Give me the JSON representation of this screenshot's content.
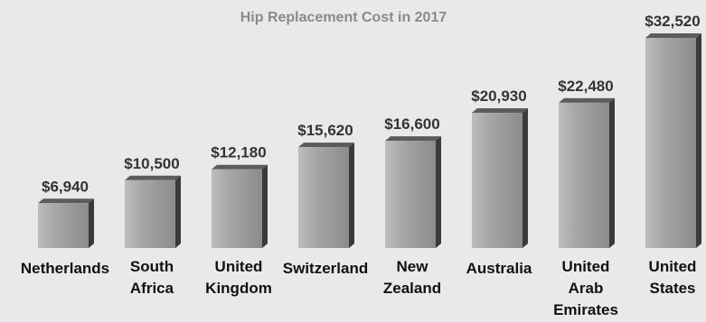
{
  "chart_data": {
    "type": "bar",
    "title": "Hip Replacement Cost in 2017",
    "categories": [
      "Netherlands",
      "South Africa",
      "United Kingdom",
      "Switzerland",
      "New Zealand",
      "Australia",
      "United Arab Emirates",
      "United States"
    ],
    "category_lines": [
      [
        "Netherlands"
      ],
      [
        "South",
        "Africa"
      ],
      [
        "United",
        "Kingdom"
      ],
      [
        "Switzerland"
      ],
      [
        "New",
        "Zealand"
      ],
      [
        "Australia"
      ],
      [
        "United",
        "Arab",
        "Emirates"
      ],
      [
        "United",
        "States"
      ]
    ],
    "values": [
      6940,
      10500,
      12180,
      15620,
      16600,
      20930,
      22480,
      32520
    ],
    "value_labels": [
      "$6,940",
      "$10,500",
      "$12,180",
      "$15,620",
      "$16,600",
      "$20,930",
      "$22,480",
      "$32,520"
    ],
    "xlabel": "",
    "ylabel": "",
    "ylim": [
      0,
      32520
    ],
    "grid": false,
    "bar_style": "3d",
    "colors": {
      "background": "#e9e9e9",
      "bar_front": "#9a9a9a",
      "bar_side": "#3a3a3a",
      "bar_top": "#5c5c5c",
      "title": "#8a8a8a",
      "value_label": "#333333",
      "category_label": "#111111"
    }
  }
}
